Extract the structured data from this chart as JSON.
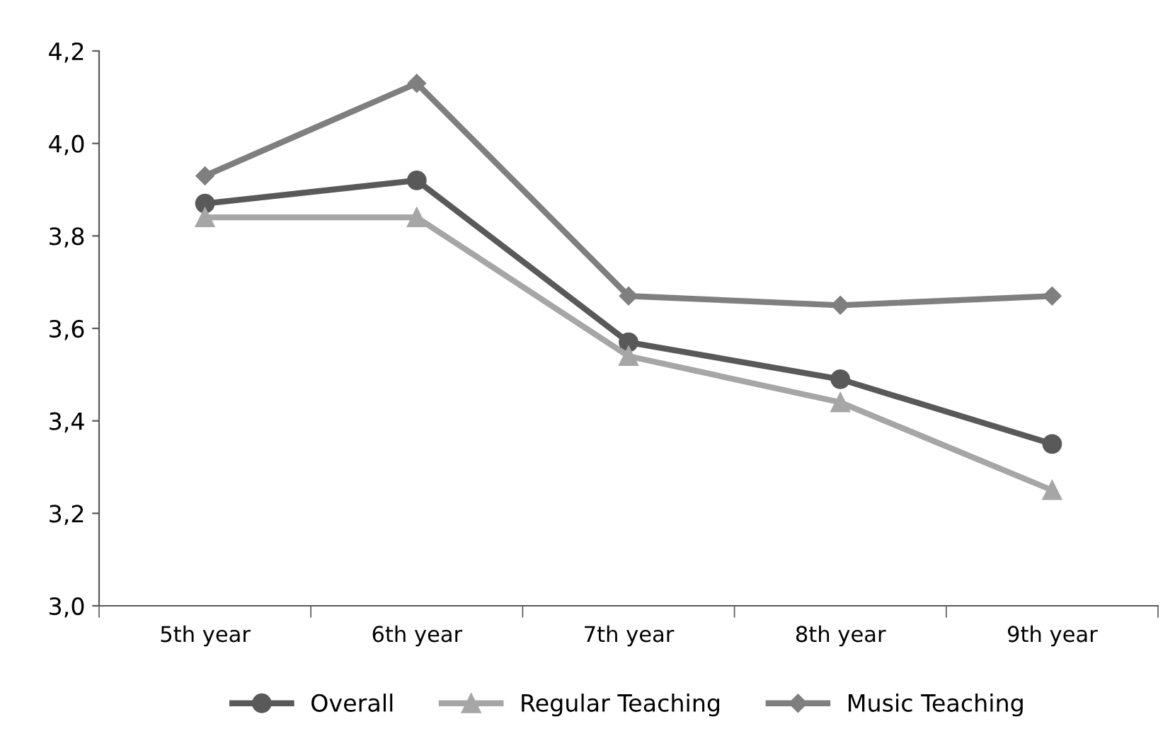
{
  "chart_data": {
    "type": "line",
    "categories": [
      "5th year",
      "6th year",
      "7th year",
      "8th year",
      "9th year"
    ],
    "series": [
      {
        "name": "Overall",
        "color": "#595959",
        "marker": "circle",
        "values": [
          3.87,
          3.92,
          3.57,
          3.49,
          3.35
        ]
      },
      {
        "name": "Regular Teaching",
        "color": "#a6a6a6",
        "marker": "triangle",
        "values": [
          3.84,
          3.84,
          3.54,
          3.44,
          3.25
        ]
      },
      {
        "name": "Music Teaching",
        "color": "#7f7f7f",
        "marker": "diamond",
        "values": [
          3.93,
          4.13,
          3.67,
          3.65,
          3.67
        ]
      }
    ],
    "ylim": [
      3.0,
      4.2
    ],
    "yticks": [
      {
        "value": 3.0,
        "label": "3,0"
      },
      {
        "value": 3.2,
        "label": "3,2"
      },
      {
        "value": 3.4,
        "label": "3,4"
      },
      {
        "value": 3.6,
        "label": "3,6"
      },
      {
        "value": 3.8,
        "label": "3,8"
      },
      {
        "value": 4.0,
        "label": "4,0"
      },
      {
        "value": 4.2,
        "label": "4,2"
      }
    ],
    "grid": false,
    "legend": "bottom",
    "line_style": "solid"
  }
}
